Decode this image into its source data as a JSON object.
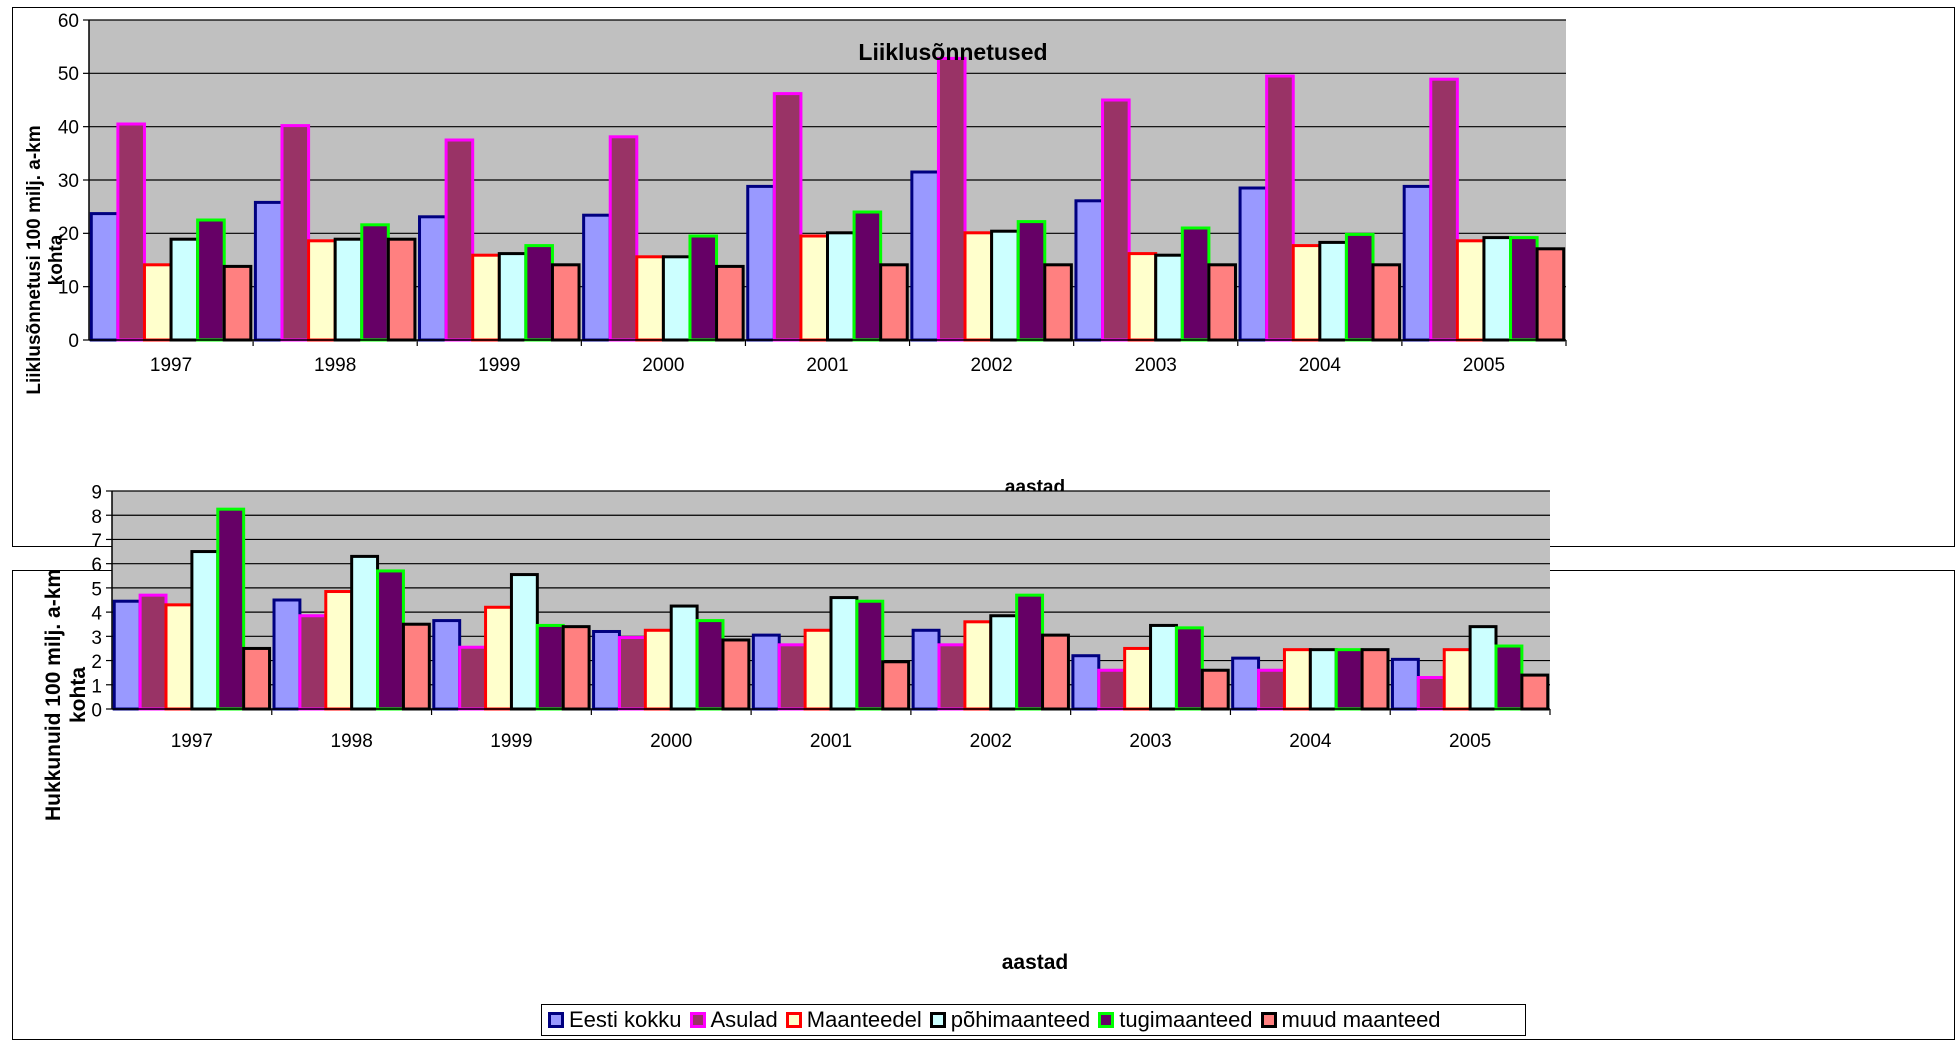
{
  "series_style": [
    {
      "fill": "#9999ff",
      "stroke": "#000080"
    },
    {
      "fill": "#993366",
      "stroke": "#ff00ff"
    },
    {
      "fill": "#ffffcc",
      "stroke": "#ff0000"
    },
    {
      "fill": "#ccffff",
      "stroke": "#000000"
    },
    {
      "fill": "#660066",
      "stroke": "#00ff00"
    },
    {
      "fill": "#ff8080",
      "stroke": "#000000"
    }
  ],
  "chart_data": [
    {
      "type": "bar",
      "title": "Liiklusõnnetused",
      "xlabel": "aastad",
      "ylabel_lines": [
        "Liiklusõnnetusi 100 milj. a-km",
        "kohta"
      ],
      "ylim": [
        0,
        60
      ],
      "yticks": [
        0,
        10,
        20,
        30,
        40,
        50,
        60
      ],
      "grid": true,
      "legend_position": "bottom",
      "categories": [
        "1997",
        "1998",
        "1999",
        "2000",
        "2001",
        "2002",
        "2003",
        "2004",
        "2005"
      ],
      "series": [
        {
          "name": "Eesti kokku",
          "values": [
            23.7,
            25.8,
            23.1,
            23.4,
            28.8,
            31.5,
            26.1,
            28.5,
            28.8
          ]
        },
        {
          "name": "Asulad",
          "values": [
            40.5,
            40.2,
            37.5,
            38.1,
            46.2,
            52.8,
            45.0,
            49.5,
            48.9
          ]
        },
        {
          "name": "Maanteedel",
          "values": [
            14.1,
            18.6,
            15.9,
            15.6,
            19.5,
            20.1,
            16.2,
            17.7,
            18.6
          ]
        },
        {
          "name": "põhimaanteed",
          "values": [
            18.9,
            18.9,
            16.2,
            15.6,
            20.1,
            20.4,
            15.9,
            18.3,
            19.2
          ]
        },
        {
          "name": "tugimaanteed",
          "values": [
            22.5,
            21.6,
            17.7,
            19.5,
            24.0,
            22.2,
            21.0,
            19.8,
            19.2
          ]
        },
        {
          "name": "muud maanteed",
          "values": [
            13.8,
            18.9,
            14.1,
            13.8,
            14.1,
            14.1,
            14.1,
            14.1,
            17.1
          ]
        }
      ]
    },
    {
      "type": "bar",
      "title": "",
      "xlabel": "aastad",
      "ylabel_lines": [
        "Hukkunuid 100 milj. a-km",
        "kohta"
      ],
      "ylim": [
        0,
        9
      ],
      "yticks": [
        0,
        1,
        2,
        3,
        4,
        5,
        6,
        7,
        8,
        9
      ],
      "grid": true,
      "legend_position": "bottom",
      "categories": [
        "1997",
        "1998",
        "1999",
        "2000",
        "2001",
        "2002",
        "2003",
        "2004",
        "2005"
      ],
      "series": [
        {
          "name": "Eesti kokku",
          "values": [
            4.45,
            4.5,
            3.65,
            3.2,
            3.05,
            3.25,
            2.2,
            2.1,
            2.05
          ]
        },
        {
          "name": "Asulad",
          "values": [
            4.7,
            3.85,
            2.55,
            2.95,
            2.65,
            2.65,
            1.6,
            1.6,
            1.3
          ]
        },
        {
          "name": "Maanteedel",
          "values": [
            4.3,
            4.85,
            4.2,
            3.25,
            3.25,
            3.6,
            2.5,
            2.45,
            2.45
          ]
        },
        {
          "name": "põhimaanteed",
          "values": [
            6.5,
            6.3,
            5.55,
            4.25,
            4.6,
            3.85,
            3.45,
            2.45,
            3.4
          ]
        },
        {
          "name": "tugimaanteed",
          "values": [
            8.25,
            5.7,
            3.45,
            3.65,
            4.45,
            4.7,
            3.35,
            2.45,
            2.6
          ]
        },
        {
          "name": "muud maanteed",
          "values": [
            2.5,
            3.5,
            3.4,
            2.85,
            1.95,
            3.05,
            1.6,
            2.45,
            1.4
          ]
        }
      ]
    }
  ]
}
